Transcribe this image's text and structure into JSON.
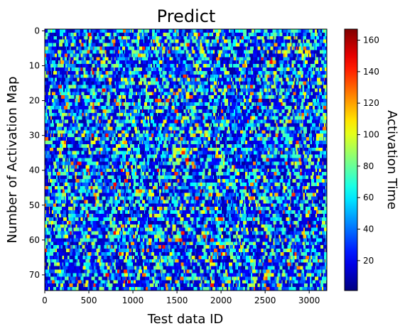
{
  "chart_data": {
    "type": "heatmap",
    "title": "Predict",
    "xlabel": "Test data ID",
    "ylabel": "Number of Activation Map",
    "colorbar_label": "Activation Time",
    "xlim": [
      0,
      3200
    ],
    "ylim": [
      0,
      75
    ],
    "y_inverted": true,
    "x_ticks": [
      0,
      500,
      1000,
      1500,
      2000,
      2500,
      3000
    ],
    "y_ticks": [
      0,
      10,
      20,
      30,
      40,
      50,
      60,
      70
    ],
    "colorbar_range": [
      1,
      167
    ],
    "colorbar_ticks": [
      20,
      40,
      60,
      80,
      100,
      120,
      140,
      160
    ],
    "colormap": "jet",
    "rows": 75,
    "columns": 3200,
    "grid": false,
    "values_note_excluded": true
  }
}
